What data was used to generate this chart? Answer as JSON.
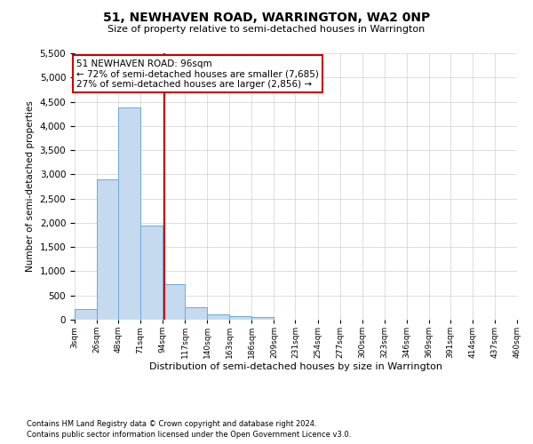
{
  "title": "51, NEWHAVEN ROAD, WARRINGTON, WA2 0NP",
  "subtitle": "Size of property relative to semi-detached houses in Warrington",
  "xlabel": "Distribution of semi-detached houses by size in Warrington",
  "ylabel": "Number of semi-detached properties",
  "bins": [
    3,
    26,
    48,
    71,
    94,
    117,
    140,
    163,
    186,
    209,
    231,
    254,
    277,
    300,
    323,
    346,
    369,
    391,
    414,
    437,
    460
  ],
  "counts": [
    220,
    2900,
    4380,
    1940,
    730,
    260,
    110,
    80,
    50,
    0,
    0,
    0,
    0,
    0,
    0,
    0,
    0,
    0,
    0,
    0
  ],
  "bar_color": "#c5d9ef",
  "bar_edge_color": "#6aaad4",
  "vline_x": 96,
  "vline_color": "#cc0000",
  "annotation_line1": "51 NEWHAVEN ROAD: 96sqm",
  "annotation_line2": "← 72% of semi-detached houses are smaller (7,685)",
  "annotation_line3": "27% of semi-detached houses are larger (2,856) →",
  "annotation_box_color": "#cc0000",
  "ylim": [
    0,
    5500
  ],
  "yticks": [
    0,
    500,
    1000,
    1500,
    2000,
    2500,
    3000,
    3500,
    4000,
    4500,
    5000,
    5500
  ],
  "footer1": "Contains HM Land Registry data © Crown copyright and database right 2024.",
  "footer2": "Contains public sector information licensed under the Open Government Licence v3.0.",
  "bg_color": "#ffffff",
  "grid_color": "#d0d0d0"
}
